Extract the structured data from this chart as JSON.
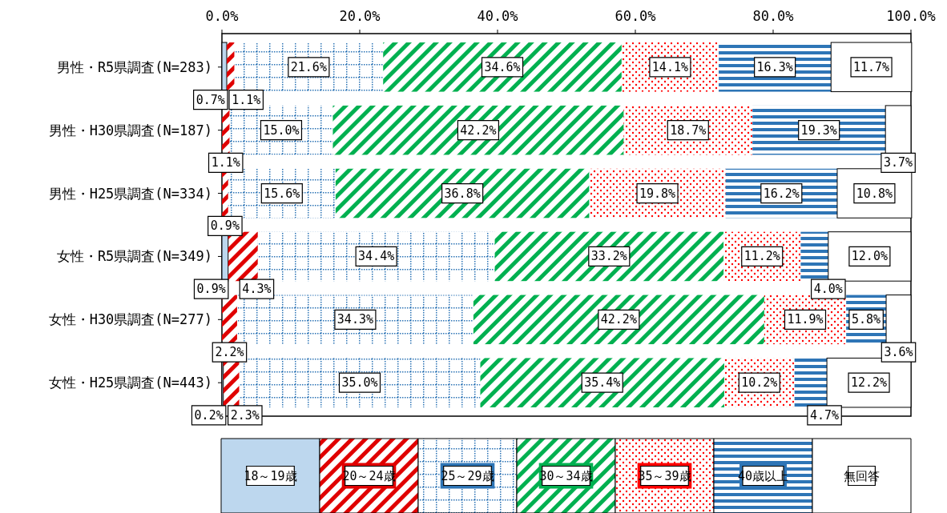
{
  "chart_data": {
    "type": "bar",
    "orientation": "horizontal",
    "stacked": true,
    "legend": "bottom",
    "grid": false,
    "categories": [
      "男性・R5県調査(N=283)",
      "男性・H30県調査(N=187)",
      "男性・H25県調査(N=334)",
      "女性・R5県調査(N=349)",
      "女性・H30県調査(N=277)",
      "女性・H25県調査(N=443)"
    ],
    "xlim": [
      0,
      100
    ],
    "xticks": [
      {
        "value": 0,
        "label": "0.0%"
      },
      {
        "value": 20,
        "label": "20.0%"
      },
      {
        "value": 40,
        "label": "40.0%"
      },
      {
        "value": 60,
        "label": "60.0%"
      },
      {
        "value": 80,
        "label": "80.0%"
      },
      {
        "value": 100,
        "label": "100.0%"
      }
    ],
    "series": [
      {
        "name": "18～19歳",
        "color": "#bdd7ee",
        "values": [
          0.7,
          0,
          0,
          0.9,
          0,
          0.2
        ],
        "value_labels": [
          "0.7%",
          null,
          null,
          "0.9%",
          null,
          "0.2%"
        ]
      },
      {
        "name": "20～24歳",
        "color": "#e00000",
        "values": [
          1.1,
          1.1,
          0.9,
          4.3,
          2.2,
          2.3
        ],
        "value_labels": [
          "1.1%",
          "1.1%",
          "0.9%",
          "4.3%",
          "2.2%",
          "2.3%"
        ]
      },
      {
        "name": "25～29歳",
        "color": "#2e75b6",
        "values": [
          21.6,
          15.0,
          15.6,
          34.4,
          34.3,
          35.0
        ],
        "value_labels": [
          "21.6%",
          "15.0%",
          "15.6%",
          "34.4%",
          "34.3%",
          "35.0%"
        ]
      },
      {
        "name": "30～34歳",
        "color": "#00b050",
        "values": [
          34.6,
          42.2,
          36.8,
          33.2,
          42.2,
          35.4
        ],
        "value_labels": [
          "34.6%",
          "42.2%",
          "36.8%",
          "33.2%",
          "42.2%",
          "35.4%"
        ]
      },
      {
        "name": "35～39歳",
        "color": "#ff0000",
        "values": [
          14.1,
          18.7,
          19.8,
          11.2,
          11.9,
          10.2
        ],
        "value_labels": [
          "14.1%",
          "18.7%",
          "19.8%",
          "11.2%",
          "11.9%",
          "10.2%"
        ]
      },
      {
        "name": "40歳以上",
        "color": "#2e75b6",
        "values": [
          16.3,
          19.3,
          16.2,
          4.0,
          5.8,
          4.7
        ],
        "value_labels": [
          "16.3%",
          "19.3%",
          "16.2%",
          "4.0%",
          "5.8%",
          "4.7%"
        ]
      },
      {
        "name": "無回答",
        "color": "#ffffff",
        "values": [
          11.7,
          3.7,
          10.8,
          12.0,
          3.6,
          12.2
        ],
        "value_labels": [
          "11.7%",
          "3.7%",
          "10.8%",
          "12.0%",
          "3.6%",
          "12.2%"
        ]
      }
    ]
  }
}
